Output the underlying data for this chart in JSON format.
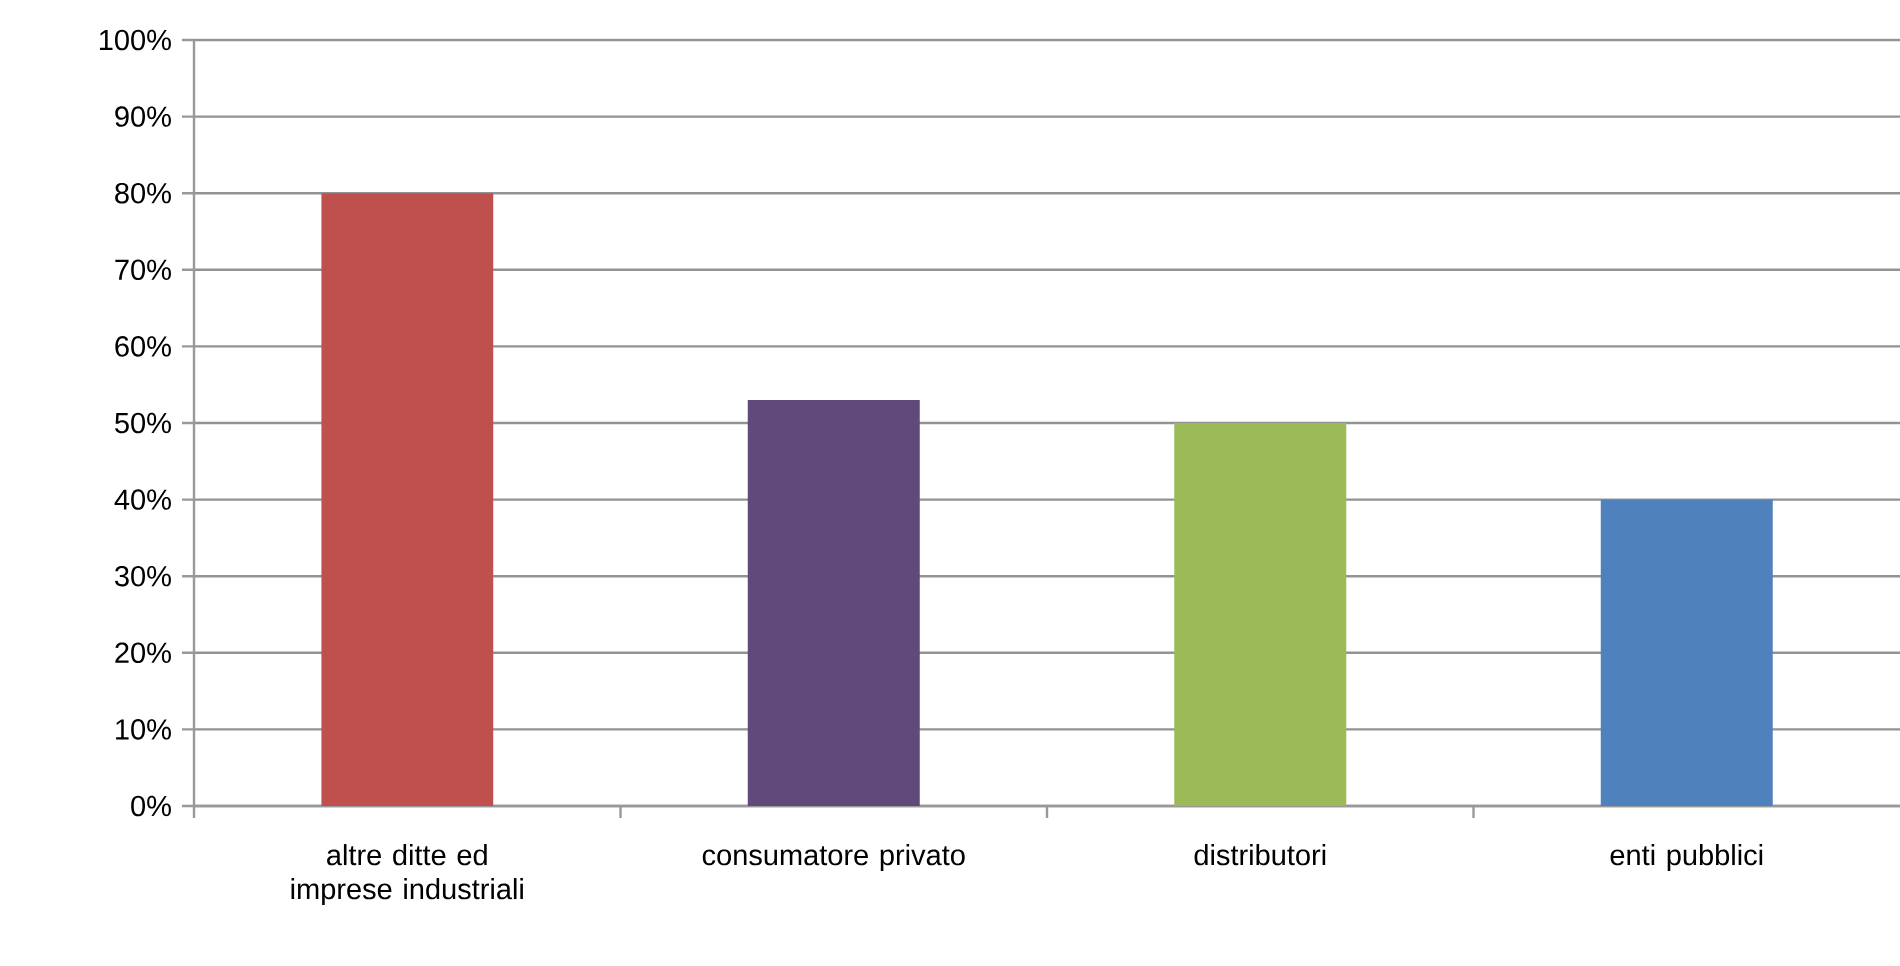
{
  "chart_data": {
    "type": "bar",
    "categories": [
      "altre ditte ed imprese industriali",
      "consumatore privato",
      "distributori",
      "enti pubblici"
    ],
    "values": [
      80,
      53,
      50,
      40
    ],
    "colors": [
      "#c0504d",
      "#604a7b",
      "#9bbb59",
      "#4f81bd"
    ],
    "ylim": [
      0,
      100
    ],
    "yticks": [
      {
        "value": 0,
        "label": "0%"
      },
      {
        "value": 10,
        "label": "10%"
      },
      {
        "value": 20,
        "label": "20%"
      },
      {
        "value": 30,
        "label": "30%"
      },
      {
        "value": 40,
        "label": "40%"
      },
      {
        "value": 50,
        "label": "50%"
      },
      {
        "value": 60,
        "label": "60%"
      },
      {
        "value": 70,
        "label": "70%"
      },
      {
        "value": 80,
        "label": "80%"
      },
      {
        "value": 90,
        "label": "90%"
      },
      {
        "value": 100,
        "label": "100%"
      }
    ],
    "grid": "y"
  }
}
